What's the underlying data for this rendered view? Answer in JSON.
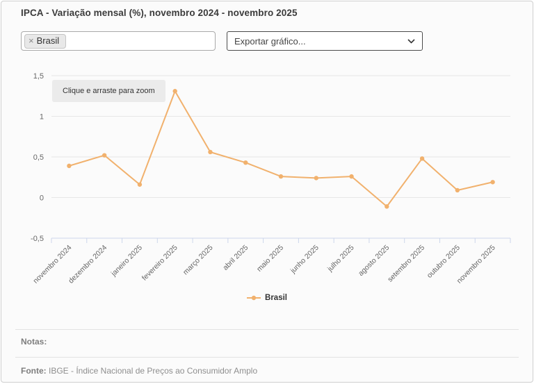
{
  "header": {
    "title": "IPCA - Variação mensal (%), novembro 2024 - novembro 2025"
  },
  "controls": {
    "territory_filter": {
      "selected_tags": [
        {
          "label": "Brasil",
          "remove_icon": "×"
        }
      ]
    },
    "export_select": {
      "value": "Exportar gráfico..."
    }
  },
  "chart_data": {
    "type": "line",
    "title": "IPCA - Variação mensal (%)",
    "categories": [
      "novembro 2024",
      "dezembro 2024",
      "janeiro 2025",
      "fevereiro 2025",
      "março 2025",
      "abril 2025",
      "maio 2025",
      "junho 2025",
      "julho 2025",
      "agosto 2025",
      "setembro 2025",
      "outubro 2025",
      "novembro 2025"
    ],
    "series": [
      {
        "name": "Brasil",
        "color": "#f1b16d",
        "values": [
          0.39,
          0.52,
          0.16,
          1.31,
          0.56,
          0.43,
          0.26,
          0.24,
          0.26,
          -0.11,
          0.48,
          0.09,
          0.19
        ]
      }
    ],
    "ylim": [
      -0.5,
      1.5
    ],
    "yticks": [
      -0.5,
      0,
      0.5,
      1,
      1.5
    ],
    "ytick_labels": [
      "-0,5",
      "0",
      "0,5",
      "1",
      "1,5"
    ],
    "grid": true,
    "legend_position": "bottom",
    "zoom_hint": "Clique e arraste para zoom",
    "colors": {
      "grid": "#e6e6e6",
      "axis": "#ccd6eb",
      "axis_label": "#666666"
    }
  },
  "legend": {
    "items": [
      {
        "label": "Brasil",
        "color": "#f1b16d"
      }
    ]
  },
  "footer": {
    "notes_label": "Notas:",
    "source_label": "Fonte:",
    "source_text": " IBGE - Índice Nacional de Preços ao Consumidor Amplo"
  }
}
